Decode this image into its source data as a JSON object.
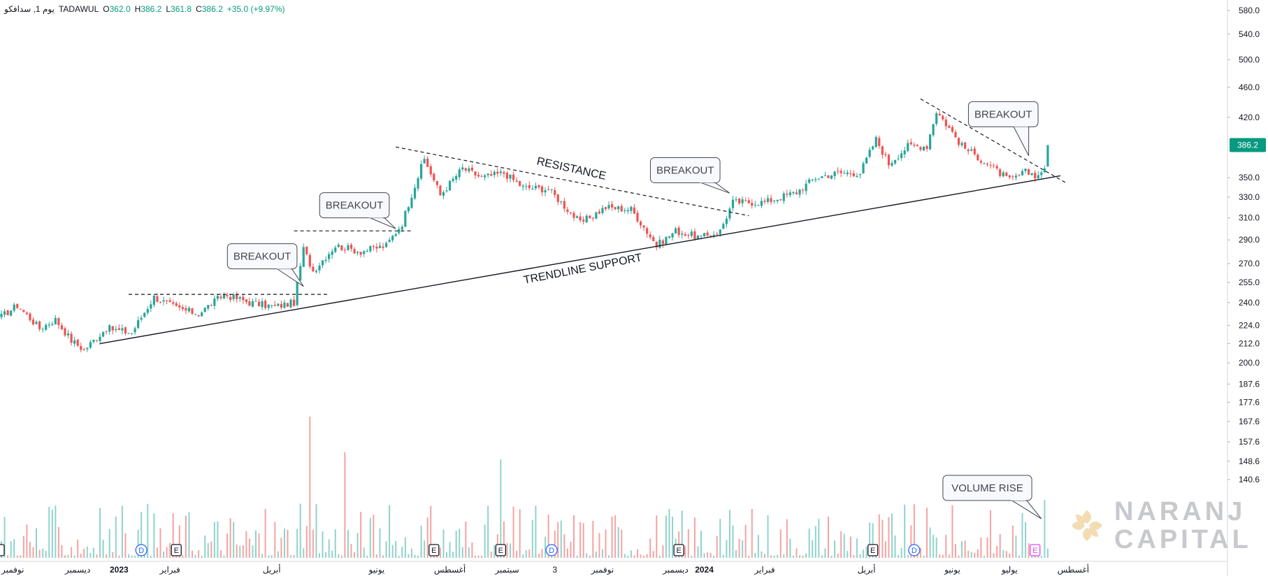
{
  "header": {
    "symbol": "TADAWUL",
    "interval": "يوم 1, سدافكو",
    "open_label": "O",
    "open": "362.0",
    "high_label": "H",
    "high": "386.2",
    "low_label": "L",
    "low": "361.8",
    "close_label": "C",
    "close": "386.2",
    "change": "+35.0 (+9.97%)"
  },
  "price_tag": "386.2",
  "brand": {
    "line1": "NARANJ",
    "line2": "CAPITAL"
  },
  "colors": {
    "up": "#26a69a",
    "down": "#ef5350",
    "vol_up": "#8fd3cb",
    "vol_down": "#f5a3a1",
    "tag": "#089981"
  },
  "chart_data": {
    "type": "candlestick",
    "price_axis_ticks": [
      "580.0",
      "540.0",
      "500.0",
      "460.0",
      "420.0",
      "386.2",
      "350.0",
      "330.0",
      "310.0",
      "290.0",
      "270.0",
      "255.0",
      "240.0",
      "224.0",
      "212.0",
      "200.0",
      "187.6",
      "177.6",
      "167.6",
      "157.6",
      "148.6",
      "140.6"
    ],
    "scale": "log",
    "time_axis_labels": [
      "نوفمبر",
      "ديسمبر",
      "2023",
      "فبراير",
      "أبريل",
      "يونيو",
      "أغسطس",
      "سبتمبر",
      "3",
      "نوفمبر",
      "ديسمبر",
      "2024",
      "فبراير",
      "أبريل",
      "يونيو",
      "يوليو",
      "أغسطس"
    ],
    "last_close": 386.2,
    "pivots": [
      {
        "bar": 0,
        "p": 230
      },
      {
        "bar": 5,
        "p": 238
      },
      {
        "bar": 12,
        "p": 222
      },
      {
        "bar": 17,
        "p": 228
      },
      {
        "bar": 22,
        "p": 214
      },
      {
        "bar": 26,
        "p": 208
      },
      {
        "bar": 33,
        "p": 222
      },
      {
        "bar": 41,
        "p": 219
      },
      {
        "bar": 48,
        "p": 244
      },
      {
        "bar": 55,
        "p": 236
      },
      {
        "bar": 62,
        "p": 232
      },
      {
        "bar": 70,
        "p": 246
      },
      {
        "bar": 78,
        "p": 240
      },
      {
        "bar": 86,
        "p": 237
      },
      {
        "bar": 92,
        "p": 240
      },
      {
        "bar": 95,
        "p": 282
      },
      {
        "bar": 98,
        "p": 264
      },
      {
        "bar": 105,
        "p": 285
      },
      {
        "bar": 113,
        "p": 280
      },
      {
        "bar": 121,
        "p": 285
      },
      {
        "bar": 126,
        "p": 305
      },
      {
        "bar": 133,
        "p": 370
      },
      {
        "bar": 138,
        "p": 332
      },
      {
        "bar": 145,
        "p": 360
      },
      {
        "bar": 151,
        "p": 350
      },
      {
        "bar": 158,
        "p": 355
      },
      {
        "bar": 164,
        "p": 340
      },
      {
        "bar": 172,
        "p": 338
      },
      {
        "bar": 182,
        "p": 305
      },
      {
        "bar": 190,
        "p": 320
      },
      {
        "bar": 198,
        "p": 318
      },
      {
        "bar": 206,
        "p": 285
      },
      {
        "bar": 212,
        "p": 298
      },
      {
        "bar": 220,
        "p": 292
      },
      {
        "bar": 226,
        "p": 298
      },
      {
        "bar": 230,
        "p": 325
      },
      {
        "bar": 240,
        "p": 325
      },
      {
        "bar": 250,
        "p": 335
      },
      {
        "bar": 256,
        "p": 350
      },
      {
        "bar": 263,
        "p": 355
      },
      {
        "bar": 270,
        "p": 355
      },
      {
        "bar": 275,
        "p": 393
      },
      {
        "bar": 279,
        "p": 365
      },
      {
        "bar": 285,
        "p": 385
      },
      {
        "bar": 291,
        "p": 385
      },
      {
        "bar": 294,
        "p": 428
      },
      {
        "bar": 302,
        "p": 385
      },
      {
        "bar": 310,
        "p": 365
      },
      {
        "bar": 317,
        "p": 347
      },
      {
        "bar": 322,
        "p": 356
      },
      {
        "bar": 326,
        "p": 352
      },
      {
        "bar": 328,
        "p": 362
      },
      {
        "bar": 329,
        "p": 386.2
      }
    ],
    "volume_bars": [],
    "volume_spikes": [
      {
        "bar": 97,
        "v": 200
      },
      {
        "bar": 108,
        "v": 185
      },
      {
        "bar": 157,
        "v": 182
      },
      {
        "bar": 226,
        "v": 157
      },
      {
        "bar": 328,
        "v": 165
      }
    ],
    "events": [
      {
        "label": "D",
        "bar": 44,
        "kind": "dividend"
      },
      {
        "label": "E",
        "bar": 55,
        "kind": "earnings"
      },
      {
        "label": "E",
        "bar": 136,
        "kind": "earnings"
      },
      {
        "label": "E",
        "bar": 157,
        "kind": "earnings"
      },
      {
        "label": "D",
        "bar": 173,
        "kind": "dividend"
      },
      {
        "label": "E",
        "bar": 213,
        "kind": "earnings"
      },
      {
        "label": "E",
        "bar": 274,
        "kind": "earnings"
      },
      {
        "label": "D",
        "bar": 287,
        "kind": "dividend"
      },
      {
        "label": "E",
        "bar": 325,
        "kind": "earnings-upcoming"
      }
    ],
    "trendlines": [
      {
        "name": "trendline-support",
        "style": "solid",
        "from": {
          "bar": 31,
          "p": 212
        },
        "to": {
          "bar": 333,
          "p": 352
        }
      },
      {
        "name": "resistance",
        "style": "dashed",
        "from": {
          "bar": 124,
          "p": 384
        },
        "to": {
          "bar": 235,
          "p": 312
        }
      },
      {
        "name": "breakout-level-1",
        "style": "dashed",
        "from": {
          "bar": 40,
          "p": 246
        },
        "to": {
          "bar": 103,
          "p": 246
        }
      },
      {
        "name": "breakout-level-2",
        "style": "dashed",
        "from": {
          "bar": 92,
          "p": 298
        },
        "to": {
          "bar": 129,
          "p": 298
        }
      },
      {
        "name": "recent-downtrend",
        "style": "dashed",
        "from": {
          "bar": 289,
          "p": 444
        },
        "to": {
          "bar": 335,
          "p": 344
        }
      }
    ],
    "annotations": [
      {
        "text": "BREAKOUT",
        "box_bar": 82,
        "box_p": 276,
        "point_bar": 95,
        "point_p": 252
      },
      {
        "text": "BREAKOUT",
        "box_bar": 111,
        "box_p": 322,
        "point_bar": 124,
        "point_p": 300
      },
      {
        "text": "BREAKOUT",
        "box_bar": 215,
        "box_p": 358,
        "point_bar": 229,
        "point_p": 334
      },
      {
        "text": "BREAKOUT",
        "box_bar": 315,
        "box_p": 424,
        "point_bar": 323,
        "point_p": 374
      },
      {
        "text": "VOLUME RISE",
        "box_bar": 310,
        "box_v": 170,
        "point_bar": 327,
        "point_v": 157
      }
    ],
    "line_labels": [
      {
        "text": "RESISTANCE",
        "bar": 179,
        "p": 356,
        "angle": 12.5
      },
      {
        "text": "TRENDLINE SUPPORT",
        "bar": 183,
        "p": 263,
        "angle": -11
      }
    ]
  }
}
